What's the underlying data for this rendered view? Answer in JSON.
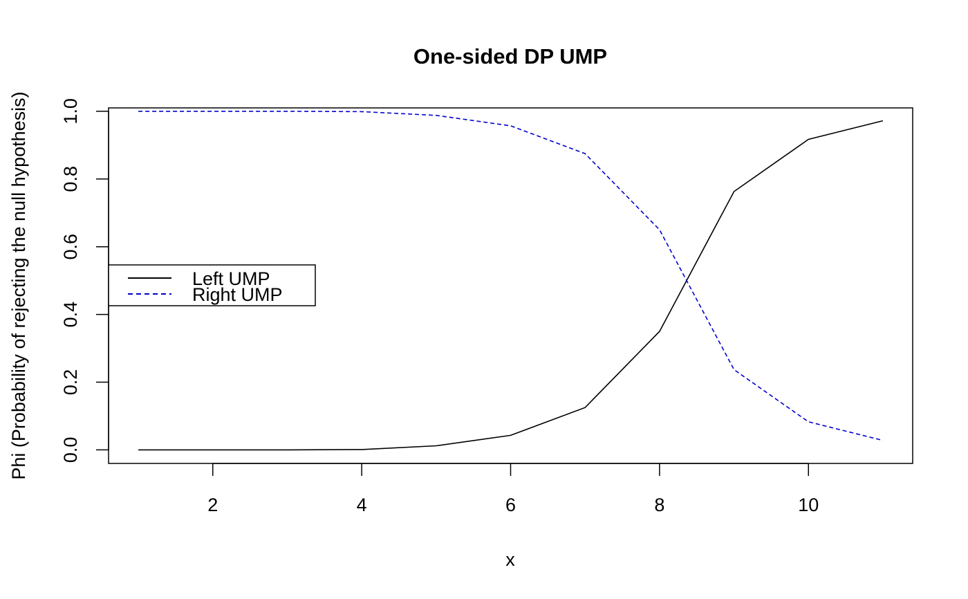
{
  "chart_data": {
    "type": "line",
    "title": "One-sided DP UMP",
    "xlabel": "x",
    "ylabel": "Phi (Probability of rejecting the null hypothesis)",
    "x": [
      1,
      2,
      3,
      4,
      5,
      6,
      7,
      8,
      9,
      10,
      11
    ],
    "xlim": [
      0.6,
      11.4
    ],
    "ylim": [
      -0.04,
      1.01
    ],
    "xticks": [
      2,
      4,
      6,
      8,
      10
    ],
    "yticks": [
      0.0,
      0.2,
      0.4,
      0.6,
      0.8,
      1.0
    ],
    "xtick_labels": [
      "2",
      "4",
      "6",
      "8",
      "10"
    ],
    "ytick_labels": [
      "0.0",
      "0.2",
      "0.4",
      "0.6",
      "0.8",
      "1.0"
    ],
    "grid": false,
    "legend_position": "left",
    "series": [
      {
        "name": "Left UMP",
        "color": "#000000",
        "line_style": "solid",
        "values": [
          0.0,
          0.0,
          0.0,
          0.001,
          0.012,
          0.043,
          0.125,
          0.35,
          0.763,
          0.917,
          0.972
        ]
      },
      {
        "name": "Right UMP",
        "color": "#0000cc",
        "line_style": "dashed",
        "values": [
          1.0,
          1.0,
          1.0,
          0.999,
          0.988,
          0.957,
          0.875,
          0.65,
          0.237,
          0.083,
          0.028
        ]
      }
    ]
  }
}
